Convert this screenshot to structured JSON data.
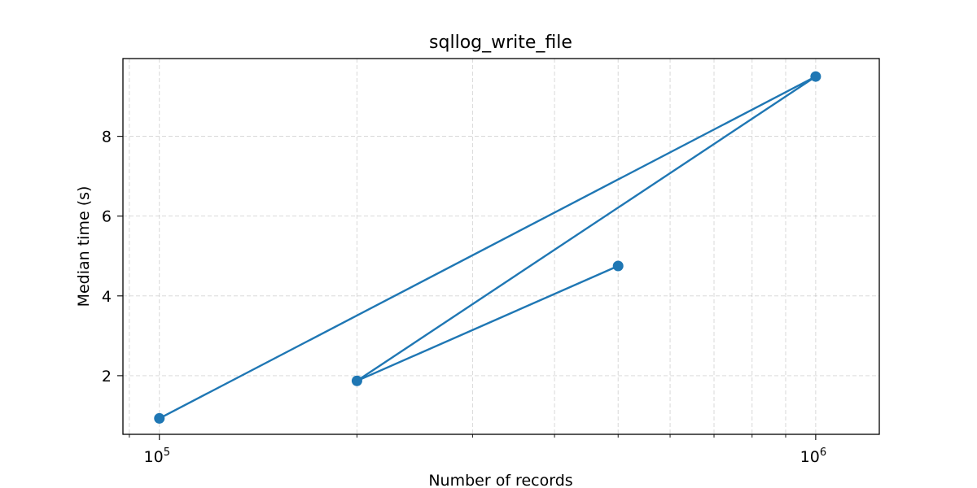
{
  "chart_data": {
    "type": "line",
    "title": "sqllog_write_file",
    "xlabel": "Number of records",
    "ylabel": "Median time (s)",
    "x_scale": "log",
    "y_scale": "linear",
    "xlim": [
      88000,
      1250000
    ],
    "ylim": [
      0.53,
      9.95
    ],
    "grid": true,
    "legend": "none",
    "color": "#1f77b4",
    "x_ticks": [
      {
        "value": 100000,
        "base": "10",
        "exp": "5"
      },
      {
        "value": 1000000,
        "base": "10",
        "exp": "6"
      }
    ],
    "y_ticks": [
      2,
      4,
      6,
      8
    ],
    "series": [
      {
        "x": [
          100000,
          1000000,
          200000,
          500000
        ],
        "y": [
          0.93,
          9.5,
          1.87,
          4.75
        ]
      }
    ]
  }
}
